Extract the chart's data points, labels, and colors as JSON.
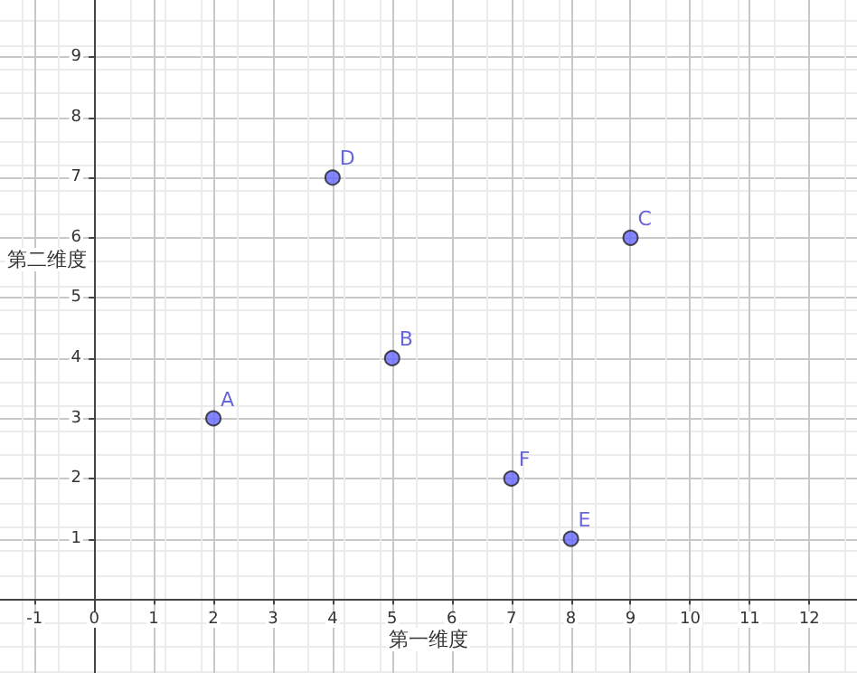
{
  "chart_data": {
    "type": "scatter",
    "xlabel": "第一维度",
    "ylabel": "第二维度",
    "x": [
      2,
      5,
      9,
      4,
      8,
      7
    ],
    "series": [
      {
        "color": "#6666ff",
        "values": [
          3,
          4,
          6,
          7,
          1,
          2
        ]
      }
    ],
    "annotations": [
      {
        "text": "A",
        "x": 2,
        "y": 3
      },
      {
        "text": "B",
        "x": 5,
        "y": 4
      },
      {
        "text": "C",
        "x": 9,
        "y": 6
      },
      {
        "text": "D",
        "x": 4,
        "y": 7
      },
      {
        "text": "E",
        "x": 8,
        "y": 1
      },
      {
        "text": "F",
        "x": 7,
        "y": 2
      }
    ],
    "xlim": [
      -1.58,
      12.8
    ],
    "ylim": [
      -1.23,
      9.95
    ],
    "xticks": [
      -1,
      0,
      1,
      2,
      3,
      4,
      5,
      6,
      7,
      8,
      9,
      10,
      11,
      12
    ],
    "yticks": [
      1,
      2,
      3,
      4,
      5,
      6,
      7,
      8,
      9
    ],
    "grid": true,
    "marker": "circle"
  }
}
